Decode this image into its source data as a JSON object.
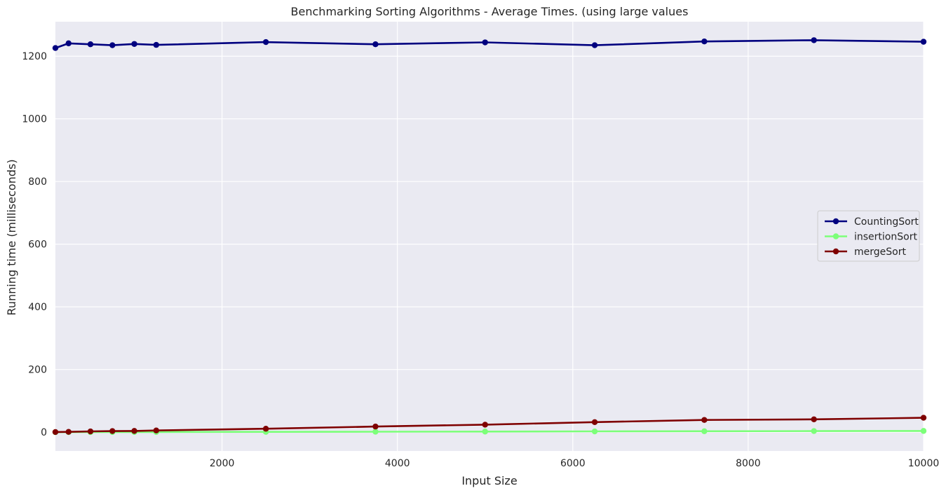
{
  "chart_data": {
    "type": "line",
    "title": "Benchmarking Sorting Algorithms - Average Times. (using large values",
    "xlabel": "Input Size",
    "ylabel": "Running time (milliseconds)",
    "xlim": [
      100,
      10000
    ],
    "ylim": [
      -60,
      1310
    ],
    "xticks": [
      2000,
      4000,
      6000,
      8000,
      10000
    ],
    "yticks": [
      0,
      200,
      400,
      600,
      800,
      1000,
      1200
    ],
    "grid": true,
    "legend_position": "center-right",
    "x": [
      100,
      250,
      500,
      750,
      1000,
      1250,
      2500,
      3750,
      5000,
      6250,
      7500,
      8750,
      10000
    ],
    "series": [
      {
        "name": "CountingSort",
        "color": "#00007f",
        "values": [
          1226,
          1241,
          1238,
          1235,
          1239,
          1236,
          1245,
          1238,
          1244,
          1235,
          1247,
          1251,
          1246
        ]
      },
      {
        "name": "insertionSort",
        "color": "#7cff79",
        "values": [
          0.1,
          0.2,
          0.3,
          0.4,
          0.5,
          0.6,
          1.0,
          1.5,
          2.0,
          2.5,
          3.0,
          3.5,
          4.0
        ]
      },
      {
        "name": "mergeSort",
        "color": "#7f0000",
        "values": [
          0.5,
          1.0,
          2.5,
          3.5,
          4.0,
          5.5,
          11,
          18,
          24,
          32,
          39,
          41,
          46
        ]
      }
    ]
  }
}
